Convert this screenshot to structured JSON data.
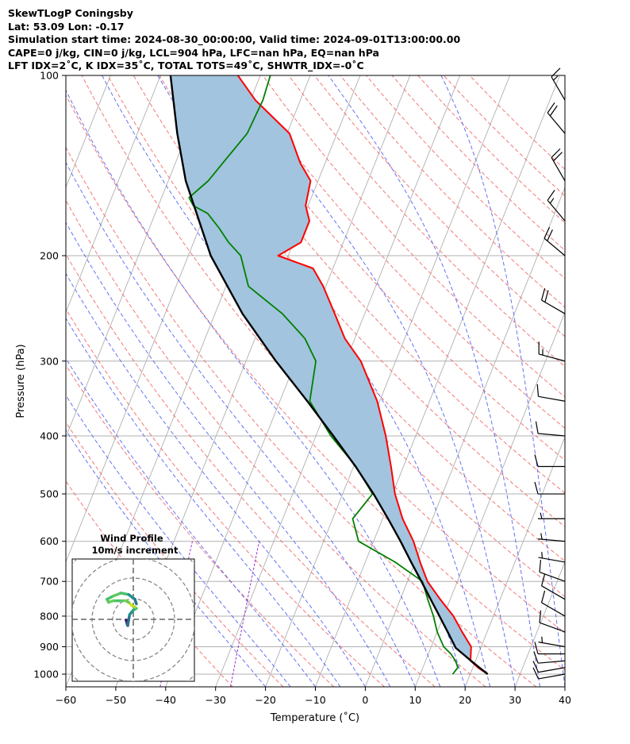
{
  "header": {
    "line1": "SkewTLogP Coningsby",
    "line2": "Lat: 53.09   Lon: -0.17",
    "line3": "Simulation start time: 2024-08-30_00:00:00, Valid time: 2024-09-01T13:00:00.00",
    "line4": "CAPE=0 j/kg, CIN=0 j/kg, LCL=904 hPa, LFC=nan hPa, EQ=nan hPa",
    "line5": "LFT IDX=2˚C, K IDX=35˚C, TOTAL TOTS=49˚C, SHWTR_IDX=-0˚C"
  },
  "colors": {
    "temperature": "#ff0000",
    "dewpoint": "#008000",
    "parcel": "#000000",
    "shade": "#a2c4de",
    "isotherm": "#b0b0b0",
    "dry_adiabat": "#f06060",
    "moist_adiabat": "#4a5af0",
    "mixing_ratio": "#9933cc",
    "hodo_ring": "#808080"
  },
  "chart_data": {
    "type": "line",
    "title": "SkewTLogP Coningsby",
    "xlabel": "Temperature (˚C)",
    "ylabel": "Pressure (hPa)",
    "xlim": [
      -60,
      40
    ],
    "ylim": [
      1050,
      100
    ],
    "yscale": "log",
    "skew": true,
    "grid": true,
    "x_ticks": [
      "−60",
      "−50",
      "−40",
      "−30",
      "−20",
      "−10",
      "0",
      "10",
      "20",
      "30",
      "40"
    ],
    "y_ticks": [
      "1000",
      "900",
      "800",
      "700",
      "600",
      "500",
      "400",
      "300",
      "200",
      "100"
    ],
    "series": [
      {
        "key": "temperature",
        "pressure": [
          1000,
          975,
          950,
          925,
          900,
          850,
          800,
          750,
          700,
          650,
          600,
          550,
          500,
          450,
          400,
          350,
          300,
          275,
          250,
          225,
          210,
          200,
          190,
          175,
          165,
          150,
          140,
          125,
          110,
          100
        ],
        "values": [
          23.5,
          21.0,
          19.0,
          18.5,
          18.0,
          15.0,
          12.0,
          8.0,
          4.0,
          1.0,
          -2.0,
          -6.0,
          -9.5,
          -12.5,
          -16.0,
          -20.5,
          -27.0,
          -32.0,
          -36.0,
          -40.5,
          -44.0,
          -52.0,
          -48.5,
          -48.5,
          -50.5,
          -51.5,
          -55.0,
          -59.5,
          -69.0,
          -74.5
        ]
      },
      {
        "key": "dewpoint",
        "pressure": [
          1000,
          975,
          950,
          925,
          900,
          850,
          800,
          750,
          700,
          650,
          600,
          550,
          500,
          450,
          400,
          350,
          300,
          275,
          250,
          225,
          200,
          190,
          180,
          170,
          165,
          160,
          150,
          140,
          125,
          110,
          100
        ],
        "values": [
          16.5,
          17.0,
          16.0,
          14.5,
          12.5,
          10.0,
          8.0,
          5.5,
          3.0,
          -4.0,
          -13.0,
          -16.0,
          -14.0,
          -19.5,
          -27.0,
          -34.0,
          -36.0,
          -40.0,
          -46.5,
          -55.5,
          -59.5,
          -63.0,
          -66.0,
          -69.5,
          -73.0,
          -74.5,
          -72.0,
          -70.5,
          -68.0,
          -67.5,
          -68.0
        ]
      },
      {
        "key": "parcel",
        "pressure": [
          1000,
          975,
          950,
          925,
          904,
          850,
          800,
          750,
          700,
          650,
          600,
          550,
          500,
          450,
          400,
          350,
          300,
          250,
          200,
          150,
          125,
          100
        ],
        "values": [
          23.5,
          21.3,
          19.1,
          16.9,
          15.0,
          12.1,
          9.2,
          6.1,
          2.8,
          -0.8,
          -4.6,
          -8.9,
          -13.8,
          -19.6,
          -26.5,
          -34.5,
          -44.0,
          -54.5,
          -65.5,
          -76.5,
          -82.0,
          -88.0
        ]
      }
    ],
    "barbs": [
      {
        "pressure": 1000,
        "speed_kt": 12,
        "dir_deg": 260
      },
      {
        "pressure": 975,
        "speed_kt": 12,
        "dir_deg": 260
      },
      {
        "pressure": 950,
        "speed_kt": 13,
        "dir_deg": 265
      },
      {
        "pressure": 925,
        "speed_kt": 12,
        "dir_deg": 270
      },
      {
        "pressure": 900,
        "speed_kt": 8,
        "dir_deg": 280
      },
      {
        "pressure": 850,
        "speed_kt": 10,
        "dir_deg": 290
      },
      {
        "pressure": 800,
        "speed_kt": 12,
        "dir_deg": 300
      },
      {
        "pressure": 750,
        "speed_kt": 10,
        "dir_deg": 300
      },
      {
        "pressure": 700,
        "speed_kt": 10,
        "dir_deg": 290
      },
      {
        "pressure": 650,
        "speed_kt": 8,
        "dir_deg": 280
      },
      {
        "pressure": 600,
        "speed_kt": 8,
        "dir_deg": 275
      },
      {
        "pressure": 550,
        "speed_kt": 9,
        "dir_deg": 270
      },
      {
        "pressure": 500,
        "speed_kt": 10,
        "dir_deg": 270
      },
      {
        "pressure": 450,
        "speed_kt": 10,
        "dir_deg": 270
      },
      {
        "pressure": 400,
        "speed_kt": 10,
        "dir_deg": 275
      },
      {
        "pressure": 350,
        "speed_kt": 12,
        "dir_deg": 280
      },
      {
        "pressure": 300,
        "speed_kt": 15,
        "dir_deg": 285
      },
      {
        "pressure": 250,
        "speed_kt": 20,
        "dir_deg": 300
      },
      {
        "pressure": 200,
        "speed_kt": 22,
        "dir_deg": 310
      },
      {
        "pressure": 175,
        "speed_kt": 18,
        "dir_deg": 320
      },
      {
        "pressure": 150,
        "speed_kt": 22,
        "dir_deg": 330
      },
      {
        "pressure": 125,
        "speed_kt": 22,
        "dir_deg": 320
      },
      {
        "pressure": 110,
        "speed_kt": 15,
        "dir_deg": 330
      }
    ],
    "hodograph": {
      "title_line1": "Wind Profile",
      "title_line2": "10m/s increment",
      "ring_step": 10,
      "rings": 3,
      "u": [
        -2.3,
        -2.1,
        -2.0,
        -1.8,
        -1.2,
        0.0,
        1.0,
        0.5,
        -0.5,
        -1.5,
        -2.5,
        -3.5,
        -4.5,
        -6.5,
        -8.0,
        -8.5,
        -6.5,
        -4.0,
        -1.5,
        0.5,
        1.0
      ],
      "v": [
        -0.3,
        -1.0,
        -1.5,
        -2.0,
        1.5,
        3.0,
        3.5,
        4.0,
        4.5,
        5.5,
        6.0,
        6.0,
        6.0,
        6.0,
        5.5,
        6.5,
        7.5,
        8.5,
        8.0,
        6.5,
        5.0
      ],
      "colors": [
        "#440154",
        "#472d7b",
        "#3b528b",
        "#2c728e",
        "#21918c",
        "#28ae80",
        "#5ec962",
        "#addc30",
        "#d0e11c",
        "#5ec962",
        "#7ad151",
        "#5ec962",
        "#4ac16d",
        "#6ece58",
        "#5ec962",
        "#4ac16d",
        "#5ec962",
        "#4ac16d",
        "#21918c",
        "#2c728e",
        "#3b528b"
      ]
    }
  }
}
